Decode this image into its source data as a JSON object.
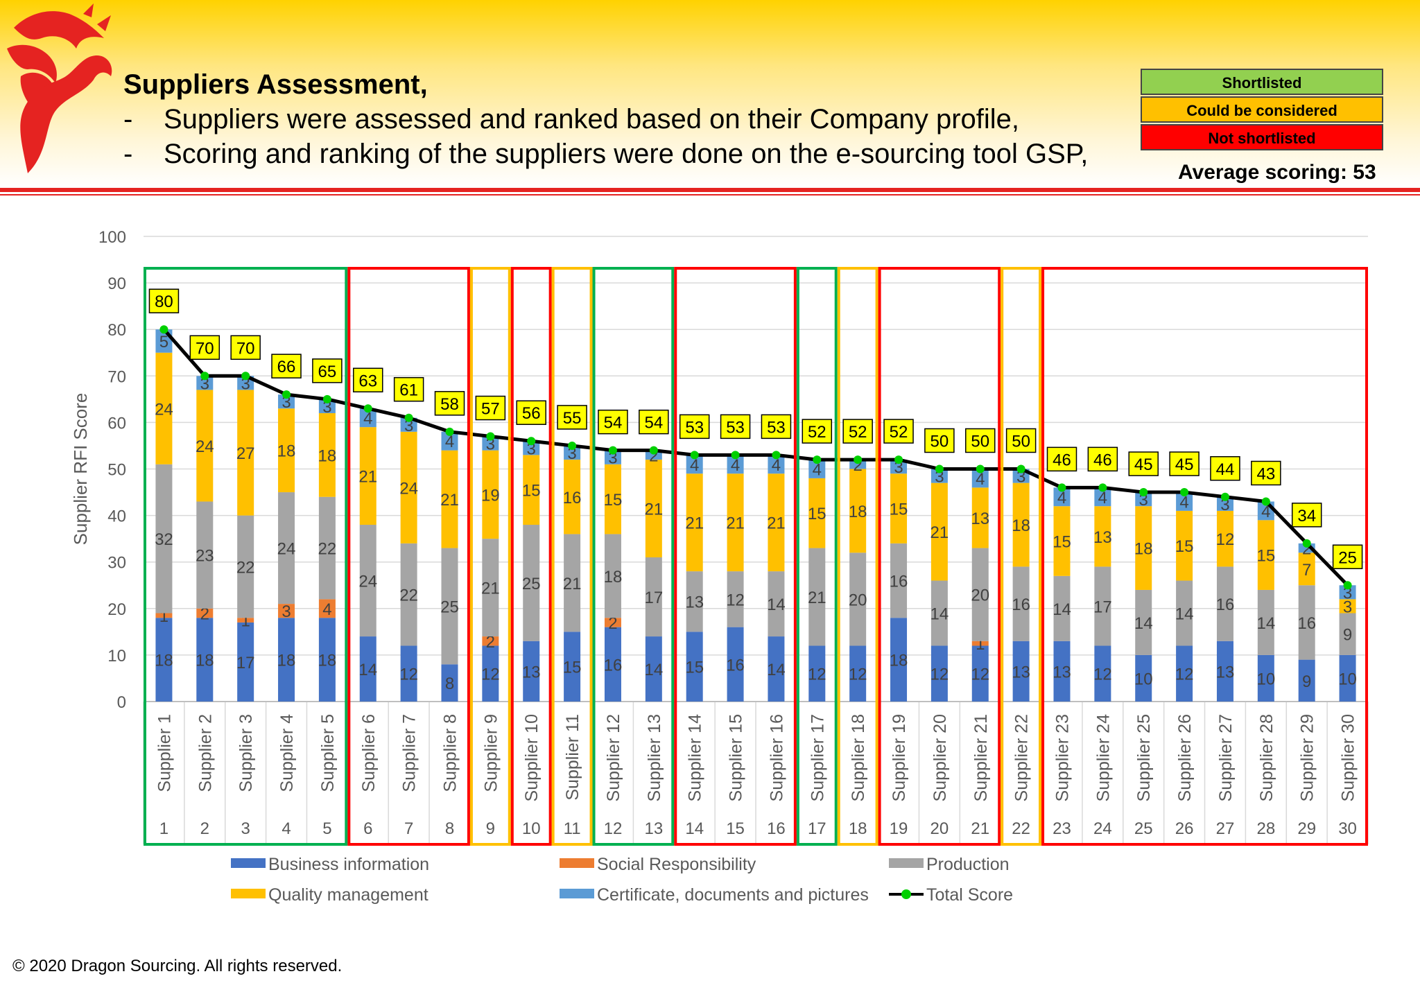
{
  "slide": {
    "title": "Suppliers Assessment,",
    "bullets": [
      "Suppliers were assessed and ranked based on their Company profile,",
      "Scoring and ranking of the suppliers were done on the e-sourcing tool GSP,"
    ],
    "bullet_dash": "-",
    "status_legend": [
      {
        "label": "Shortlisted",
        "color": "#92d050"
      },
      {
        "label": "Could be considered",
        "color": "#ffc000"
      },
      {
        "label": "Not shortlisted",
        "color": "#ff0000"
      }
    ],
    "average_scoring": "Average scoring: 53",
    "copyright": "© 2020 Dragon Sourcing. All rights reserved.",
    "logo": "dragon-logo"
  },
  "chart_data": {
    "type": "bar",
    "stacked": true,
    "ylabel": "Supplier RFI Score",
    "ylim": [
      0,
      100
    ],
    "yticks": [
      0,
      10,
      20,
      30,
      40,
      50,
      60,
      70,
      80,
      90,
      100
    ],
    "categories": [
      "Supplier 1",
      "Supplier 2",
      "Supplier 3",
      "Supplier 4",
      "Supplier 5",
      "Supplier 6",
      "Supplier 7",
      "Supplier 8",
      "Supplier 9",
      "Supplier 10",
      "Supplier 11",
      "Supplier 12",
      "Supplier 13",
      "Supplier 14",
      "Supplier 15",
      "Supplier 16",
      "Supplier 17",
      "Supplier 18",
      "Supplier 19",
      "Supplier 20",
      "Supplier 21",
      "Supplier 22",
      "Supplier 23",
      "Supplier 24",
      "Supplier 25",
      "Supplier 26",
      "Supplier 27",
      "Supplier 28",
      "Supplier 29",
      "Supplier 30"
    ],
    "ranks": [
      "1",
      "2",
      "3",
      "4",
      "5",
      "6",
      "7",
      "8",
      "9",
      "10",
      "11",
      "12",
      "13",
      "14",
      "15",
      "16",
      "17",
      "18",
      "19",
      "20",
      "21",
      "22",
      "23",
      "24",
      "25",
      "26",
      "27",
      "28",
      "29",
      "30"
    ],
    "series": [
      {
        "name": "Business information",
        "color": "#4472c4",
        "values": [
          18,
          18,
          17,
          18,
          18,
          14,
          12,
          8,
          12,
          13,
          15,
          16,
          14,
          15,
          16,
          14,
          12,
          12,
          18,
          12,
          12,
          13,
          13,
          12,
          10,
          12,
          13,
          10,
          9,
          10
        ]
      },
      {
        "name": "Social Responsibility",
        "color": "#ed7d31",
        "values": [
          1,
          2,
          1,
          3,
          4,
          0,
          0,
          0,
          2,
          0,
          0,
          2,
          0,
          0,
          0,
          0,
          0,
          0,
          0,
          0,
          1,
          0,
          0,
          0,
          0,
          0,
          0,
          0,
          0,
          0
        ]
      },
      {
        "name": "Production",
        "color": "#a5a5a5",
        "values": [
          32,
          23,
          22,
          24,
          22,
          24,
          22,
          25,
          21,
          25,
          21,
          18,
          17,
          13,
          12,
          14,
          21,
          20,
          16,
          14,
          20,
          16,
          14,
          17,
          14,
          14,
          16,
          14,
          16,
          9
        ]
      },
      {
        "name": "Quality management",
        "color": "#ffc000",
        "values": [
          24,
          24,
          27,
          18,
          18,
          21,
          24,
          21,
          19,
          15,
          16,
          15,
          21,
          21,
          21,
          21,
          15,
          18,
          15,
          21,
          13,
          18,
          15,
          13,
          18,
          15,
          12,
          15,
          7,
          3
        ]
      },
      {
        "name": "Certificate, documents and pictures",
        "color": "#5b9bd5",
        "values": [
          5,
          3,
          3,
          3,
          3,
          4,
          3,
          4,
          3,
          3,
          3,
          3,
          2,
          4,
          4,
          4,
          4,
          2,
          3,
          3,
          4,
          3,
          4,
          4,
          3,
          4,
          3,
          4,
          2,
          3
        ]
      }
    ],
    "total": {
      "name": "Total Score",
      "values": [
        80,
        70,
        70,
        66,
        65,
        63,
        61,
        58,
        57,
        56,
        55,
        54,
        54,
        53,
        53,
        53,
        52,
        52,
        52,
        50,
        50,
        50,
        46,
        46,
        45,
        45,
        44,
        43,
        34,
        25
      ]
    },
    "groups": [
      {
        "start": 1,
        "end": 5,
        "status": "Shortlisted"
      },
      {
        "start": 6,
        "end": 8,
        "status": "Not shortlisted"
      },
      {
        "start": 9,
        "end": 9,
        "status": "Could be considered"
      },
      {
        "start": 10,
        "end": 10,
        "status": "Not shortlisted"
      },
      {
        "start": 11,
        "end": 11,
        "status": "Could be considered"
      },
      {
        "start": 12,
        "end": 13,
        "status": "Shortlisted"
      },
      {
        "start": 14,
        "end": 16,
        "status": "Not shortlisted"
      },
      {
        "start": 17,
        "end": 17,
        "status": "Shortlisted"
      },
      {
        "start": 18,
        "end": 18,
        "status": "Could be considered"
      },
      {
        "start": 19,
        "end": 21,
        "status": "Not shortlisted"
      },
      {
        "start": 22,
        "end": 22,
        "status": "Could be considered"
      },
      {
        "start": 23,
        "end": 30,
        "status": "Not shortlisted"
      }
    ],
    "legend_position": "bottom",
    "grid": true
  }
}
